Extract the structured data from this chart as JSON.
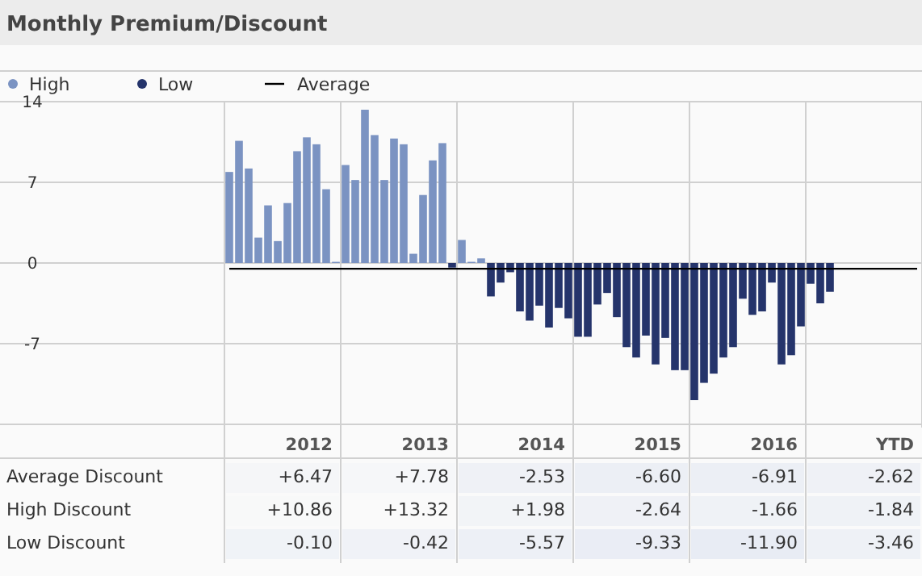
{
  "chart_data": [
    {
      "type": "bar",
      "title": "Monthly Premium/Discount",
      "grid": true,
      "legend": "top left",
      "categories": [
        null,
        null,
        null,
        null,
        null,
        null,
        null,
        null,
        null,
        null,
        null,
        null,
        null,
        null,
        null,
        null,
        null,
        null,
        null,
        null,
        null,
        null,
        null,
        null,
        null,
        null,
        null,
        null,
        null,
        null,
        null,
        null,
        null,
        null,
        null,
        null,
        null,
        null,
        null,
        null,
        null,
        null,
        null,
        null,
        null,
        null,
        null,
        null,
        null,
        null,
        null,
        null,
        null,
        null,
        null,
        null,
        null,
        null,
        null,
        null,
        null,
        null,
        null,
        null,
        null,
        null,
        null,
        null,
        null,
        null,
        null,
        null
      ],
      "series": [
        {
          "name": "High",
          "color": "#7b93c2",
          "values": [
            7.9,
            10.6,
            8.2,
            2.2,
            5,
            1.9,
            5.2,
            9.7,
            10.9,
            10.3,
            6.4,
            0.1,
            8.5,
            7.2,
            13.3,
            11.1,
            7.2,
            10.8,
            10.3,
            0.8,
            5.9,
            8.9,
            10.4,
            null,
            2,
            0.1,
            0.4,
            null,
            null,
            null,
            null,
            null,
            null,
            null,
            null,
            null,
            null,
            null,
            null,
            null,
            null,
            null,
            null,
            null,
            null,
            null,
            null,
            null,
            null,
            null,
            null,
            null,
            null,
            null,
            null,
            null,
            null,
            null,
            null,
            null,
            null,
            null,
            null,
            null,
            null,
            null,
            null,
            null,
            null,
            null,
            null,
            null
          ]
        },
        {
          "name": "Low",
          "color": "#25346b",
          "values": [
            null,
            null,
            null,
            null,
            null,
            null,
            null,
            null,
            null,
            null,
            null,
            null,
            null,
            null,
            null,
            null,
            null,
            null,
            null,
            null,
            null,
            null,
            null,
            -0.4,
            null,
            null,
            null,
            -2.9,
            -1.7,
            -0.8,
            -4.2,
            -5,
            -3.7,
            -5.6,
            -3.9,
            -4.8,
            -6.4,
            -6.4,
            -3.6,
            -2.6,
            -4.7,
            -7.3,
            -8.2,
            -6.3,
            -8.8,
            -6.5,
            -9.3,
            -9.3,
            -11.9,
            -10.4,
            -9.6,
            -8.2,
            -7.3,
            -3.1,
            -4.5,
            -4.2,
            -1.7,
            -8.8,
            -8,
            -5.5,
            -1.8,
            -3.5,
            -2.5,
            null,
            null,
            null,
            null,
            null,
            null,
            null,
            null,
            null
          ]
        },
        {
          "name": "Average",
          "type": "line",
          "color": "#000000",
          "values": [
            -0.5,
            -0.5,
            -0.5,
            -0.5,
            -0.5,
            -0.5,
            -0.5,
            -0.5,
            -0.5,
            -0.5,
            -0.5,
            -0.5,
            -0.5,
            -0.5,
            -0.5,
            -0.5,
            -0.5,
            -0.5,
            -0.5,
            -0.5,
            -0.5,
            -0.5,
            -0.5,
            -0.5,
            -0.5,
            -0.5,
            -0.5,
            -0.5,
            -0.5,
            -0.5,
            -0.5,
            -0.5,
            -0.5,
            -0.5,
            -0.5,
            -0.5,
            -0.5,
            -0.5,
            -0.5,
            -0.5,
            -0.5,
            -0.5,
            -0.5,
            -0.5,
            -0.5,
            -0.5,
            -0.5,
            -0.5,
            -0.5,
            -0.5,
            -0.5,
            -0.5,
            -0.5,
            -0.5,
            -0.5,
            -0.5,
            -0.5,
            -0.5,
            -0.5,
            -0.5,
            -0.5,
            -0.5,
            -0.5,
            -0.5,
            -0.5,
            -0.5,
            -0.5,
            -0.5,
            -0.5,
            -0.5,
            -0.5,
            -0.5
          ]
        }
      ],
      "ylim": [
        -14,
        14
      ],
      "yticks": [
        {
          "value": -14,
          "label": null
        },
        -7,
        0,
        7,
        14
      ]
    },
    {
      "type": "heatmap",
      "categories": [
        "2012",
        "2013",
        "2014",
        "2015",
        "2016",
        "YTD"
      ],
      "y_categories": [
        "Average Discount",
        "High Discount",
        "Low Discount"
      ],
      "cells": [
        [
          6.47,
          7.78,
          -2.53,
          -6.6,
          -6.91,
          -2.62
        ],
        [
          10.86,
          13.32,
          1.98,
          -2.64,
          -1.66,
          -1.84
        ],
        [
          -0.1,
          -0.42,
          -5.57,
          -9.33,
          -11.9,
          -3.46
        ]
      ],
      "cell_labels": [
        [
          "+6.47",
          "+7.78",
          "-2.53",
          "-6.60",
          "-6.91",
          "-2.62"
        ],
        [
          "+10.86",
          "+13.32",
          "+1.98",
          "-2.64",
          "-1.66",
          "-1.84"
        ],
        [
          "-0.10",
          "-0.42",
          "-5.57",
          "-9.33",
          "-11.90",
          "-3.46"
        ]
      ]
    }
  ]
}
